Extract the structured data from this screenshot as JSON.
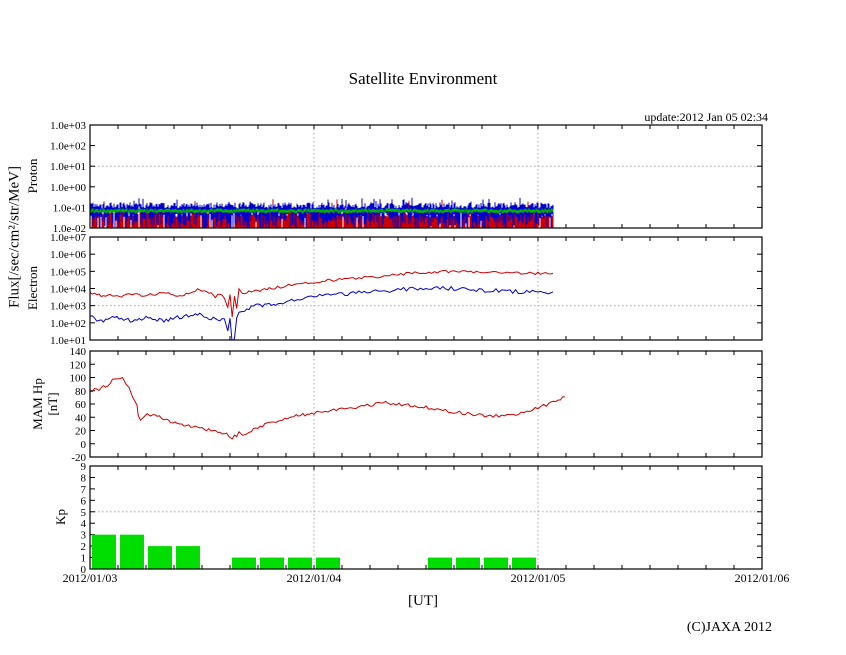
{
  "labels": {
    "title": "Satellite Environment",
    "update": "update:2012 Jan 05 02:34",
    "x_axis_unit": "[UT]",
    "copyright": "(C)JAXA 2012",
    "flux_axis": "Flux[/sec/cm²/str/MeV]",
    "proton": "Proton",
    "electron": "Electron",
    "mam_line1": "MAM Hp",
    "mam_line2": "[nT]",
    "kp": "Kp"
  },
  "chart_data": {
    "type": "line",
    "title": "Satellite Environment",
    "xlabel": "[UT]",
    "x_tick_labels": [
      "2012/01/03",
      "2012/01/04",
      "2012/01/05",
      "2012/01/06"
    ],
    "x_span_days": 3,
    "x_minor_tick_hours": 3,
    "x_day_gridlines": [
      1,
      2
    ],
    "updated": "2012 Jan 05 02:34",
    "grid_color": "#a8a8a8",
    "panels": [
      {
        "name": "Proton",
        "y_scale": "log",
        "y_max": 1000,
        "y_min": 0.01,
        "y_tick_labels": [
          "1.0e+03",
          "1.0e+02",
          "1.0e+01",
          "1.0e+00",
          "1.0e-01",
          "1.0e-02"
        ],
        "h_gridline_at": 10,
        "data_end_t": 2.07,
        "series": [
          {
            "name": "proton-channel-red",
            "color": "#cc0000",
            "style": "noise-fill",
            "band_high_log10": -1.25,
            "band_low_log10": -2.0
          },
          {
            "name": "proton-channel-blue",
            "color": "#0000cc",
            "style": "noise-strokes",
            "top_log10": -0.9,
            "bottom_log10": -1.6
          },
          {
            "name": "proton-channel-green",
            "color": "#00b400",
            "style": "noise-line",
            "level_log10": -1.17,
            "spread_log10": 0.06
          }
        ]
      },
      {
        "name": "Electron",
        "y_scale": "log",
        "y_max": 10000000,
        "y_min": 10,
        "y_tick_labels": [
          "1.0e+07",
          "1.0e+06",
          "1.0e+05",
          "1.0e+04",
          "1.0e+03",
          "1.0e+02",
          "1.0e+01"
        ],
        "h_gridline_at": 1000,
        "data_end_t": 2.07,
        "series": [
          {
            "name": "electron-high",
            "color": "#cc0000",
            "style": "line",
            "jitter": 1.4,
            "points": [
              [
                0.0,
                5200
              ],
              [
                0.04,
                4000
              ],
              [
                0.07,
                3500
              ],
              [
                0.1,
                4200
              ],
              [
                0.13,
                3500
              ],
              [
                0.16,
                4000
              ],
              [
                0.19,
                4600
              ],
              [
                0.22,
                4200
              ],
              [
                0.25,
                4000
              ],
              [
                0.28,
                4500
              ],
              [
                0.31,
                5000
              ],
              [
                0.34,
                5200
              ],
              [
                0.37,
                4500
              ],
              [
                0.4,
                4000
              ],
              [
                0.43,
                4800
              ],
              [
                0.46,
                7000
              ],
              [
                0.49,
                9000
              ],
              [
                0.52,
                7000
              ],
              [
                0.54,
                5000
              ],
              [
                0.56,
                3500
              ],
              [
                0.58,
                4500
              ],
              [
                0.6,
                2800
              ],
              [
                0.615,
                800
              ],
              [
                0.625,
                4000
              ],
              [
                0.635,
                200
              ],
              [
                0.645,
                3500
              ],
              [
                0.655,
                630
              ],
              [
                0.665,
                8000
              ],
              [
                0.68,
                5600
              ],
              [
                0.7,
                6300
              ],
              [
                0.73,
                7000
              ],
              [
                0.76,
                8000
              ],
              [
                0.8,
                10000
              ],
              [
                0.85,
                12600
              ],
              [
                0.9,
                16000
              ],
              [
                0.95,
                20000
              ],
              [
                1.0,
                22000
              ],
              [
                1.05,
                28000
              ],
              [
                1.1,
                32000
              ],
              [
                1.15,
                35000
              ],
              [
                1.2,
                40000
              ],
              [
                1.25,
                45000
              ],
              [
                1.3,
                50000
              ],
              [
                1.35,
                63000
              ],
              [
                1.4,
                71000
              ],
              [
                1.45,
                79000
              ],
              [
                1.5,
                89000
              ],
              [
                1.55,
                93000
              ],
              [
                1.6,
                100000
              ],
              [
                1.65,
                100000
              ],
              [
                1.7,
                95000
              ],
              [
                1.75,
                93000
              ],
              [
                1.8,
                89000
              ],
              [
                1.85,
                85000
              ],
              [
                1.9,
                79000
              ],
              [
                1.95,
                76000
              ],
              [
                2.0,
                79000
              ],
              [
                2.067,
                76000
              ]
            ]
          },
          {
            "name": "electron-low",
            "color": "#0000cc",
            "style": "line",
            "jitter": 2.0,
            "points": [
              [
                0.0,
                250
              ],
              [
                0.03,
                160
              ],
              [
                0.06,
                125
              ],
              [
                0.09,
                180
              ],
              [
                0.12,
                200
              ],
              [
                0.15,
                160
              ],
              [
                0.18,
                140
              ],
              [
                0.21,
                160
              ],
              [
                0.24,
                200
              ],
              [
                0.27,
                180
              ],
              [
                0.3,
                160
              ],
              [
                0.33,
                140
              ],
              [
                0.36,
                160
              ],
              [
                0.39,
                200
              ],
              [
                0.42,
                225
              ],
              [
                0.45,
                320
              ],
              [
                0.48,
                355
              ],
              [
                0.5,
                250
              ],
              [
                0.52,
                200
              ],
              [
                0.54,
                160
              ],
              [
                0.56,
                225
              ],
              [
                0.58,
                125
              ],
              [
                0.6,
                200
              ],
              [
                0.615,
                32
              ],
              [
                0.625,
                160
              ],
              [
                0.635,
                6
              ],
              [
                0.645,
                10
              ],
              [
                0.655,
                200
              ],
              [
                0.665,
                320
              ],
              [
                0.68,
                400
              ],
              [
                0.7,
                560
              ],
              [
                0.72,
                800
              ],
              [
                0.75,
                1000
              ],
              [
                0.78,
                1120
              ],
              [
                0.82,
                1250
              ],
              [
                0.86,
                1600
              ],
              [
                0.9,
                2000
              ],
              [
                0.95,
                2500
              ],
              [
                1.0,
                3200
              ],
              [
                1.05,
                4000
              ],
              [
                1.1,
                4500
              ],
              [
                1.15,
                5000
              ],
              [
                1.2,
                5600
              ],
              [
                1.25,
                6300
              ],
              [
                1.3,
                7000
              ],
              [
                1.35,
                8000
              ],
              [
                1.4,
                9000
              ],
              [
                1.45,
                10000
              ],
              [
                1.5,
                10000
              ],
              [
                1.55,
                10500
              ],
              [
                1.6,
                10000
              ],
              [
                1.65,
                9500
              ],
              [
                1.7,
                9000
              ],
              [
                1.75,
                8000
              ],
              [
                1.8,
                7600
              ],
              [
                1.85,
                7000
              ],
              [
                1.9,
                6600
              ],
              [
                1.95,
                6300
              ],
              [
                2.0,
                6600
              ],
              [
                2.067,
                6300
              ]
            ]
          }
        ]
      },
      {
        "name": "MAM Hp [nT]",
        "y_scale": "linear",
        "y_max": 140,
        "y_min": -20,
        "y_tick_labels": [
          "140",
          "120",
          "100",
          "80",
          "60",
          "40",
          "20",
          "0",
          "-20"
        ],
        "data_end_t": 2.12,
        "series": [
          {
            "name": "hp-field",
            "color": "#cc0000",
            "style": "line",
            "jitter": 1.6,
            "points": [
              [
                0.0,
                78
              ],
              [
                0.02,
                83
              ],
              [
                0.04,
                80
              ],
              [
                0.06,
                86
              ],
              [
                0.08,
                85
              ],
              [
                0.1,
                95
              ],
              [
                0.115,
                100
              ],
              [
                0.13,
                96
              ],
              [
                0.145,
                99
              ],
              [
                0.16,
                92
              ],
              [
                0.175,
                83
              ],
              [
                0.19,
                70
              ],
              [
                0.2,
                64
              ],
              [
                0.21,
                60
              ],
              [
                0.215,
                45
              ],
              [
                0.225,
                36
              ],
              [
                0.24,
                40
              ],
              [
                0.255,
                44
              ],
              [
                0.27,
                42
              ],
              [
                0.29,
                44
              ],
              [
                0.31,
                41
              ],
              [
                0.33,
                38
              ],
              [
                0.36,
                34
              ],
              [
                0.4,
                30
              ],
              [
                0.44,
                27
              ],
              [
                0.48,
                24
              ],
              [
                0.52,
                21
              ],
              [
                0.56,
                19
              ],
              [
                0.58,
                18
              ],
              [
                0.6,
                16
              ],
              [
                0.62,
                13
              ],
              [
                0.635,
                9
              ],
              [
                0.645,
                15
              ],
              [
                0.655,
                11
              ],
              [
                0.665,
                16
              ],
              [
                0.68,
                13
              ],
              [
                0.7,
                17
              ],
              [
                0.72,
                20
              ],
              [
                0.76,
                26
              ],
              [
                0.8,
                31
              ],
              [
                0.84,
                35
              ],
              [
                0.88,
                39
              ],
              [
                0.92,
                42
              ],
              [
                0.96,
                44
              ],
              [
                1.0,
                46
              ],
              [
                1.05,
                48
              ],
              [
                1.1,
                51
              ],
              [
                1.15,
                53
              ],
              [
                1.2,
                56
              ],
              [
                1.25,
                58
              ],
              [
                1.3,
                61
              ],
              [
                1.33,
                62
              ],
              [
                1.38,
                60
              ],
              [
                1.42,
                58
              ],
              [
                1.46,
                57
              ],
              [
                1.5,
                55
              ],
              [
                1.55,
                52
              ],
              [
                1.6,
                49
              ],
              [
                1.65,
                47
              ],
              [
                1.7,
                45
              ],
              [
                1.75,
                43
              ],
              [
                1.8,
                42
              ],
              [
                1.85,
                43
              ],
              [
                1.9,
                45
              ],
              [
                1.95,
                49
              ],
              [
                2.0,
                54
              ],
              [
                2.05,
                60
              ],
              [
                2.09,
                66
              ],
              [
                2.12,
                71
              ]
            ]
          }
        ]
      },
      {
        "name": "Kp",
        "y_scale": "linear",
        "y_max": 9,
        "y_min": 0,
        "y_tick_labels": [
          "9",
          "8",
          "7",
          "6",
          "5",
          "4",
          "3",
          "2",
          "1",
          "0"
        ],
        "h_gridline_at": 5,
        "series": [
          {
            "name": "kp-index",
            "color": "#00dd00",
            "style": "bars",
            "bar_hours": 3,
            "values": [
              3,
              3,
              2,
              2,
              0,
              1,
              1,
              1,
              1,
              0,
              0,
              0,
              1,
              1,
              1,
              1,
              0,
              0,
              0,
              0,
              0,
              0,
              0,
              0
            ]
          }
        ]
      }
    ]
  }
}
